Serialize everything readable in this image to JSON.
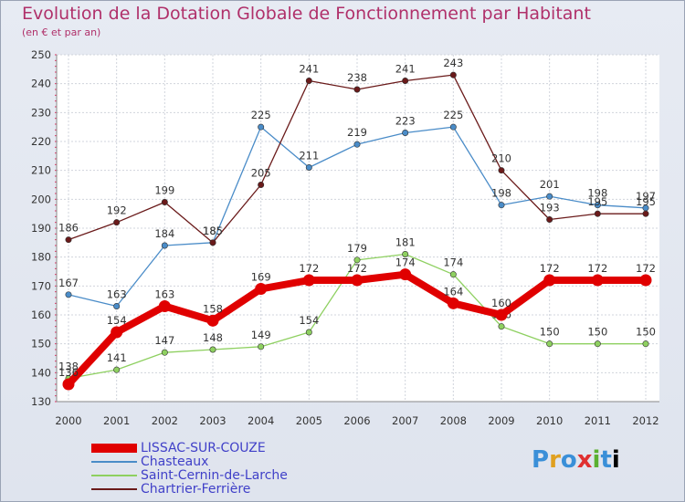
{
  "header": {
    "title": "Evolution de la Dotation Globale de Fonctionnement par Habitant",
    "subtitle": "(en € et par an)"
  },
  "logo": {
    "text": "Proxiti"
  },
  "chart_data": {
    "type": "line",
    "title": "Evolution de la Dotation Globale de Fonctionnement par Habitant",
    "subtitle": "(en € et par an)",
    "x": [
      "2000",
      "2001",
      "2002",
      "2003",
      "2004",
      "2005",
      "2006",
      "2007",
      "2008",
      "2009",
      "2010",
      "2011",
      "2012"
    ],
    "ylim": [
      130,
      250
    ],
    "yticks": [
      130,
      140,
      150,
      160,
      170,
      180,
      190,
      200,
      210,
      220,
      230,
      240,
      250
    ],
    "grid": true,
    "legend_position": "bottom-left",
    "series": [
      {
        "name": "LISSAC-SUR-COUZE",
        "color": "#e00000",
        "values": [
          136,
          154,
          163,
          158,
          169,
          172,
          172,
          174,
          164,
          160,
          172,
          172,
          172
        ]
      },
      {
        "name": "Chasteaux",
        "color": "#4a8cc8",
        "values": [
          167,
          163,
          184,
          185,
          225,
          211,
          219,
          223,
          225,
          198,
          201,
          198,
          197
        ]
      },
      {
        "name": "Saint-Cernin-de-Larche",
        "color": "#8ed060",
        "values": [
          138,
          141,
          147,
          148,
          149,
          154,
          179,
          181,
          174,
          156,
          150,
          150,
          150
        ]
      },
      {
        "name": "Chartrier-Ferrière",
        "color": "#6a1a1a",
        "values": [
          186,
          192,
          199,
          185,
          205,
          241,
          238,
          241,
          243,
          210,
          193,
          195,
          195
        ]
      }
    ]
  }
}
